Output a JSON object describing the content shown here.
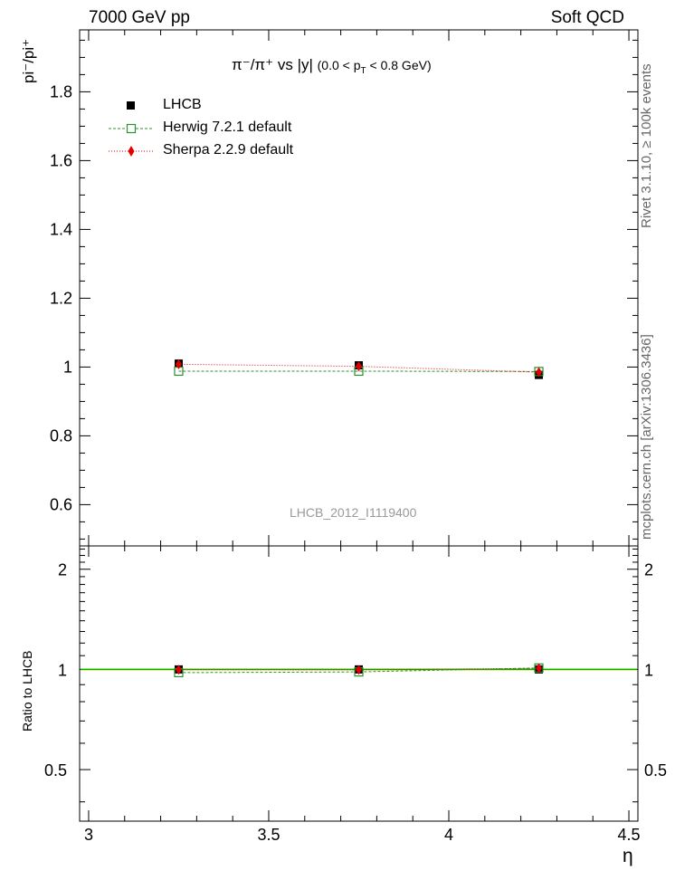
{
  "header": {
    "left": "7000 GeV pp",
    "right": "Soft QCD"
  },
  "side": {
    "rivet": "Rivet 3.1.10, ≥ 100k events",
    "mcplots": "mcplots.cern.ch [arXiv:1306.3436]"
  },
  "watermark": "LHCB_2012_I1119400",
  "chart_data": {
    "type": "scatter",
    "title": {
      "main": "π⁻/π⁺ vs |y|",
      "cut_lo": "(0.0 < p",
      "cut_sub": "T",
      "cut_hi": "< 0.8 GeV)"
    },
    "ylabel": "pi⁻/pi⁺",
    "xlabel": "η",
    "ratio_ylabel": "Ratio to LHCB",
    "xlim": [
      2.975,
      4.525
    ],
    "ylim": [
      0.48,
      1.98
    ],
    "ratio_ylim": [
      0.35,
      2.35
    ],
    "x_ticks": [
      3,
      3.5,
      4,
      4.5
    ],
    "y_ticks": [
      0.6,
      0.8,
      1,
      1.2,
      1.4,
      1.6,
      1.8
    ],
    "ratio_ticks": [
      0.5,
      1,
      2
    ],
    "x": [
      3.25,
      3.75,
      4.25
    ],
    "series": [
      {
        "name": "LHCB",
        "values": [
          1.01,
          1.005,
          0.977
        ],
        "ratio": [
          1.0,
          1.0,
          1.0
        ],
        "color": "#000000",
        "marker": "square-filled"
      },
      {
        "name": "Herwig 7.2.1 default",
        "values": [
          0.988,
          0.988,
          0.987
        ],
        "ratio": [
          0.978,
          0.983,
          1.01
        ],
        "color": "#2f8f2f",
        "marker": "square-open",
        "line": "dashed"
      },
      {
        "name": "Sherpa 2.2.9 default",
        "values": [
          1.008,
          1.002,
          0.985
        ],
        "ratio": [
          0.998,
          0.997,
          1.008
        ],
        "color": "#e00000",
        "marker": "diamond",
        "line": "dotted"
      }
    ],
    "ratio_band_color": "#e8e800",
    "ratio_line_color": "#00b000",
    "legend": "top-left",
    "grid": false
  }
}
